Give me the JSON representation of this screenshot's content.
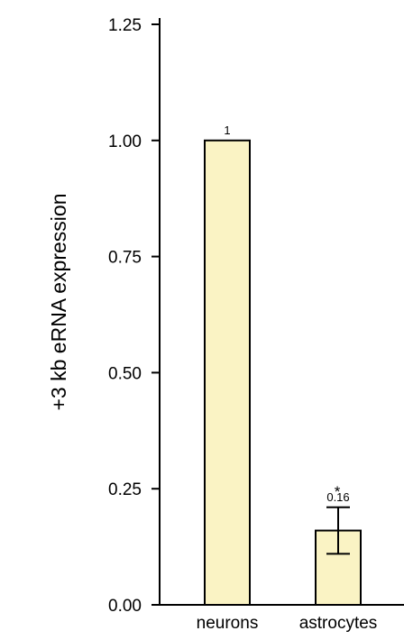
{
  "chart_data": {
    "type": "bar",
    "categories": [
      "neurons",
      "astrocytes"
    ],
    "values": [
      1.0,
      0.16
    ],
    "error": [
      null,
      0.05
    ],
    "data_labels": [
      "1",
      "0.16"
    ],
    "significance": [
      "",
      "*"
    ],
    "ylabel": "+3 kb eRNA expression",
    "xlabel": "",
    "title": "",
    "ylim": [
      0,
      1.25
    ],
    "yticks": [
      "0.00",
      "0.25",
      "0.50",
      "0.75",
      "1.00",
      "1.25"
    ],
    "grid": false,
    "legend": "none"
  },
  "colors": {
    "bar_fill": "#FAF3C4",
    "bar_stroke": "#000000",
    "axis": "#000000"
  }
}
